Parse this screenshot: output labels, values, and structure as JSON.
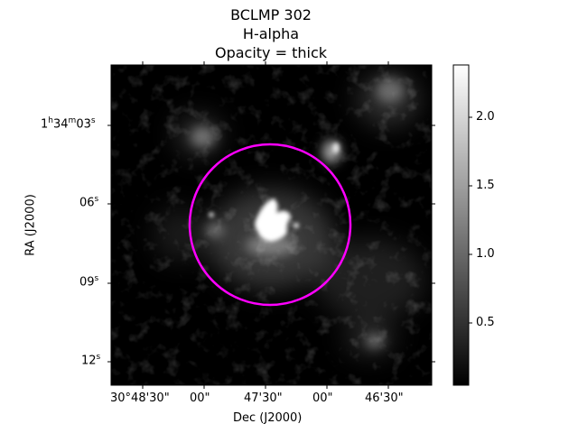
{
  "title": {
    "line1": "BCLMP 302",
    "line2": "H-alpha",
    "line3": "Opacity = thick"
  },
  "axes": {
    "xlabel": "Dec (J2000)",
    "ylabel": "RA (J2000)",
    "x_ticks": [
      "30°48'30\"",
      "00\"",
      "47'30\"",
      "00\"",
      "46'30\""
    ],
    "y_ticks": [
      {
        "main": "1",
        "h": "h",
        "m_val": "34",
        "m": "m",
        "s_val": "03",
        "s": "s"
      },
      {
        "main": "06",
        "s": "s"
      },
      {
        "main": "09",
        "s": "s"
      },
      {
        "main": "12",
        "s": "s"
      }
    ]
  },
  "colorbar": {
    "ticks": [
      "2.0",
      "1.5",
      "1.0",
      "0.5"
    ],
    "colormap": "gray",
    "range": [
      0.02,
      2.4
    ]
  },
  "annotation": {
    "shape": "circle",
    "color": "#ff00ff"
  }
}
